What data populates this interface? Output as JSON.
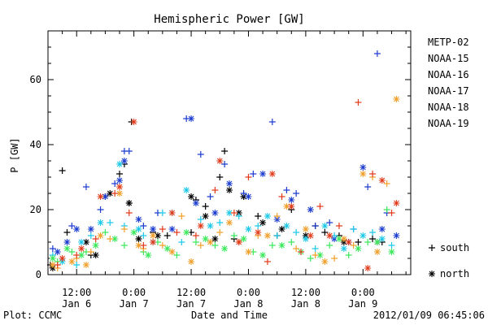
{
  "chart_data": {
    "type": "scatter",
    "title": "Hemispheric Power [GW]",
    "ylabel": "P [GW]",
    "xlabel": "Date and Time",
    "ylim": [
      0,
      75
    ],
    "yticks": [
      0,
      20,
      40,
      60
    ],
    "x_range_hours": [
      -18,
      58
    ],
    "xticks": [
      {
        "hour": -12,
        "time": "12:00",
        "date": "Jan 6"
      },
      {
        "hour": 0,
        "time": "0:00",
        "date": "Jan 7"
      },
      {
        "hour": 12,
        "time": "12:00",
        "date": "Jan 7"
      },
      {
        "hour": 24,
        "time": "0:00",
        "date": "Jan 8"
      },
      {
        "hour": 36,
        "time": "12:00",
        "date": "Jan 8"
      },
      {
        "hour": 48,
        "time": "0:00",
        "date": "Jan 9"
      }
    ],
    "series": [
      {
        "name": "METP-02",
        "color": "#000000",
        "south": [
          [
            -17.5,
            3
          ],
          [
            -15,
            32
          ],
          [
            -14,
            13
          ],
          [
            -9,
            6
          ],
          [
            -6,
            24
          ],
          [
            -3,
            31
          ],
          [
            -2,
            34
          ],
          [
            -1,
            22
          ],
          [
            -0.5,
            47
          ],
          [
            1,
            11
          ],
          [
            4,
            13
          ],
          [
            7,
            12
          ],
          [
            12,
            13
          ],
          [
            13,
            23
          ],
          [
            15,
            21
          ],
          [
            18,
            30
          ],
          [
            19,
            38
          ],
          [
            21,
            11
          ],
          [
            23,
            24
          ],
          [
            26,
            18
          ],
          [
            30,
            12
          ],
          [
            33,
            20
          ],
          [
            38,
            15
          ],
          [
            40,
            13
          ],
          [
            43,
            12
          ],
          [
            47,
            10
          ],
          [
            50,
            11
          ],
          [
            52,
            10
          ]
        ],
        "north": [
          [
            -17,
            2
          ],
          [
            -10,
            10
          ],
          [
            -8,
            6
          ],
          [
            -5,
            25
          ],
          [
            -1,
            22
          ],
          [
            1,
            11
          ],
          [
            5,
            12
          ],
          [
            12,
            24
          ],
          [
            15,
            18
          ],
          [
            17,
            11
          ],
          [
            20,
            26
          ],
          [
            22,
            19
          ],
          [
            23,
            24
          ],
          [
            27,
            16
          ],
          [
            31,
            14
          ],
          [
            36,
            12
          ],
          [
            44,
            10
          ],
          [
            51,
            10
          ]
        ]
      },
      {
        "name": "NOAA-15",
        "color": "#1c3ccf",
        "south": [
          [
            -17,
            8
          ],
          [
            -13,
            15
          ],
          [
            -10,
            27
          ],
          [
            -7,
            20
          ],
          [
            -4,
            28
          ],
          [
            -2,
            38
          ],
          [
            -1,
            38
          ],
          [
            2,
            15
          ],
          [
            5,
            19
          ],
          [
            11,
            48
          ],
          [
            14,
            37
          ],
          [
            16,
            24
          ],
          [
            19,
            34
          ],
          [
            23,
            25
          ],
          [
            25,
            31
          ],
          [
            29,
            47
          ],
          [
            32,
            26
          ],
          [
            34,
            25
          ],
          [
            38,
            15
          ],
          [
            41,
            16
          ],
          [
            46,
            14
          ],
          [
            49,
            27
          ],
          [
            51,
            68
          ],
          [
            53,
            19
          ]
        ],
        "north": [
          [
            -16,
            7
          ],
          [
            -14,
            10
          ],
          [
            -12,
            14
          ],
          [
            -9,
            14
          ],
          [
            -6,
            24
          ],
          [
            -3,
            29
          ],
          [
            -2,
            35
          ],
          [
            1,
            17
          ],
          [
            4,
            14
          ],
          [
            8,
            14
          ],
          [
            12,
            48
          ],
          [
            13,
            22
          ],
          [
            17,
            19
          ],
          [
            20,
            28
          ],
          [
            24,
            24
          ],
          [
            27,
            31
          ],
          [
            30,
            17
          ],
          [
            33,
            23
          ],
          [
            37,
            20
          ],
          [
            42,
            11
          ],
          [
            45,
            10
          ],
          [
            48,
            33
          ],
          [
            52,
            14
          ],
          [
            55,
            12
          ]
        ]
      },
      {
        "name": "NOAA-16",
        "color": "#1ec8e8",
        "south": [
          [
            -17,
            6
          ],
          [
            -12,
            3
          ],
          [
            -9,
            12
          ],
          [
            -5,
            16
          ],
          [
            -2,
            15
          ],
          [
            2,
            12
          ],
          [
            6,
            19
          ],
          [
            10,
            10
          ],
          [
            14,
            17
          ],
          [
            18,
            16
          ],
          [
            22,
            18
          ],
          [
            26,
            15
          ],
          [
            30,
            12
          ],
          [
            34,
            13
          ],
          [
            38,
            8
          ],
          [
            42,
            12
          ],
          [
            46,
            14
          ],
          [
            50,
            13
          ],
          [
            54,
            9
          ]
        ],
        "north": [
          [
            -15,
            4
          ],
          [
            -11,
            10
          ],
          [
            -7,
            16
          ],
          [
            -3,
            34
          ],
          [
            1,
            14
          ],
          [
            4,
            10
          ],
          [
            8,
            19
          ],
          [
            11,
            26
          ],
          [
            16,
            15
          ],
          [
            20,
            19
          ],
          [
            24,
            14
          ],
          [
            28,
            18
          ],
          [
            32,
            15
          ],
          [
            36,
            11
          ],
          [
            40,
            15
          ],
          [
            44,
            8
          ],
          [
            48,
            12
          ],
          [
            52,
            11
          ]
        ]
      },
      {
        "name": "NOAA-17",
        "color": "#3ce85c",
        "south": [
          [
            -16,
            4
          ],
          [
            -13,
            7
          ],
          [
            -10,
            7
          ],
          [
            -6,
            13
          ],
          [
            -2,
            9
          ],
          [
            2,
            7
          ],
          [
            5,
            10
          ],
          [
            9,
            6
          ],
          [
            13,
            10
          ],
          [
            17,
            9
          ],
          [
            21,
            12
          ],
          [
            25,
            7
          ],
          [
            29,
            9
          ],
          [
            33,
            10
          ],
          [
            37,
            5
          ],
          [
            41,
            9
          ],
          [
            45,
            6
          ],
          [
            49,
            10
          ],
          [
            53,
            20
          ]
        ],
        "north": [
          [
            -17,
            5
          ],
          [
            -14,
            8
          ],
          [
            -11,
            6
          ],
          [
            -8,
            9
          ],
          [
            -4,
            11
          ],
          [
            0,
            13
          ],
          [
            3,
            6
          ],
          [
            7,
            8
          ],
          [
            11,
            13
          ],
          [
            15,
            11
          ],
          [
            19,
            8
          ],
          [
            23,
            11
          ],
          [
            27,
            6
          ],
          [
            31,
            9
          ],
          [
            35,
            7
          ],
          [
            39,
            6
          ],
          [
            43,
            11
          ],
          [
            47,
            8
          ],
          [
            51,
            10
          ],
          [
            54,
            7
          ]
        ]
      },
      {
        "name": "NOAA-18",
        "color": "#f0a02c",
        "south": [
          [
            -16,
            2
          ],
          [
            -12,
            5
          ],
          [
            -9,
            7
          ],
          [
            -5,
            11
          ],
          [
            -2,
            14
          ],
          [
            2,
            8
          ],
          [
            6,
            9
          ],
          [
            10,
            18
          ],
          [
            14,
            9
          ],
          [
            18,
            13
          ],
          [
            22,
            10
          ],
          [
            26,
            12
          ],
          [
            30,
            18
          ],
          [
            34,
            8
          ],
          [
            38,
            6
          ],
          [
            42,
            5
          ],
          [
            46,
            9
          ],
          [
            50,
            30
          ],
          [
            53,
            28
          ]
        ],
        "north": [
          [
            -17,
            3
          ],
          [
            -13,
            4
          ],
          [
            -10,
            3
          ],
          [
            -7,
            12
          ],
          [
            -3,
            25
          ],
          [
            1,
            9
          ],
          [
            4,
            12
          ],
          [
            8,
            7
          ],
          [
            12,
            4
          ],
          [
            16,
            10
          ],
          [
            20,
            16
          ],
          [
            24,
            7
          ],
          [
            28,
            12
          ],
          [
            32,
            21
          ],
          [
            36,
            14
          ],
          [
            40,
            4
          ],
          [
            44,
            11
          ],
          [
            48,
            31
          ],
          [
            51,
            7
          ],
          [
            55,
            54
          ]
        ]
      },
      {
        "name": "NOAA-19",
        "color": "#e03c1c",
        "south": [
          [
            -16,
            3
          ],
          [
            -12,
            6
          ],
          [
            -8,
            11
          ],
          [
            -4,
            25
          ],
          [
            -1,
            19
          ],
          [
            2,
            9
          ],
          [
            6,
            14
          ],
          [
            9,
            13
          ],
          [
            13,
            12
          ],
          [
            17,
            26
          ],
          [
            21,
            19
          ],
          [
            24,
            30
          ],
          [
            28,
            4
          ],
          [
            31,
            24
          ],
          [
            35,
            7
          ],
          [
            39,
            21
          ],
          [
            43,
            15
          ],
          [
            47,
            53
          ],
          [
            50,
            31
          ],
          [
            54,
            19
          ]
        ],
        "north": [
          [
            -15,
            5
          ],
          [
            -11,
            8
          ],
          [
            -7,
            24
          ],
          [
            -3,
            27
          ],
          [
            0,
            47
          ],
          [
            4,
            10
          ],
          [
            8,
            19
          ],
          [
            14,
            15
          ],
          [
            18,
            35
          ],
          [
            22,
            10
          ],
          [
            26,
            13
          ],
          [
            29,
            31
          ],
          [
            33,
            21
          ],
          [
            37,
            12
          ],
          [
            41,
            12
          ],
          [
            45,
            10
          ],
          [
            49,
            2
          ],
          [
            52,
            29
          ],
          [
            55,
            22
          ]
        ]
      }
    ],
    "legend_position": "right",
    "symbol_legend": [
      {
        "symbol": "+",
        "label": "south"
      },
      {
        "symbol": "*",
        "label": "north"
      }
    ]
  },
  "footer": {
    "left": "Plot: CCMC",
    "right": "2012/01/09 06:45:06"
  }
}
